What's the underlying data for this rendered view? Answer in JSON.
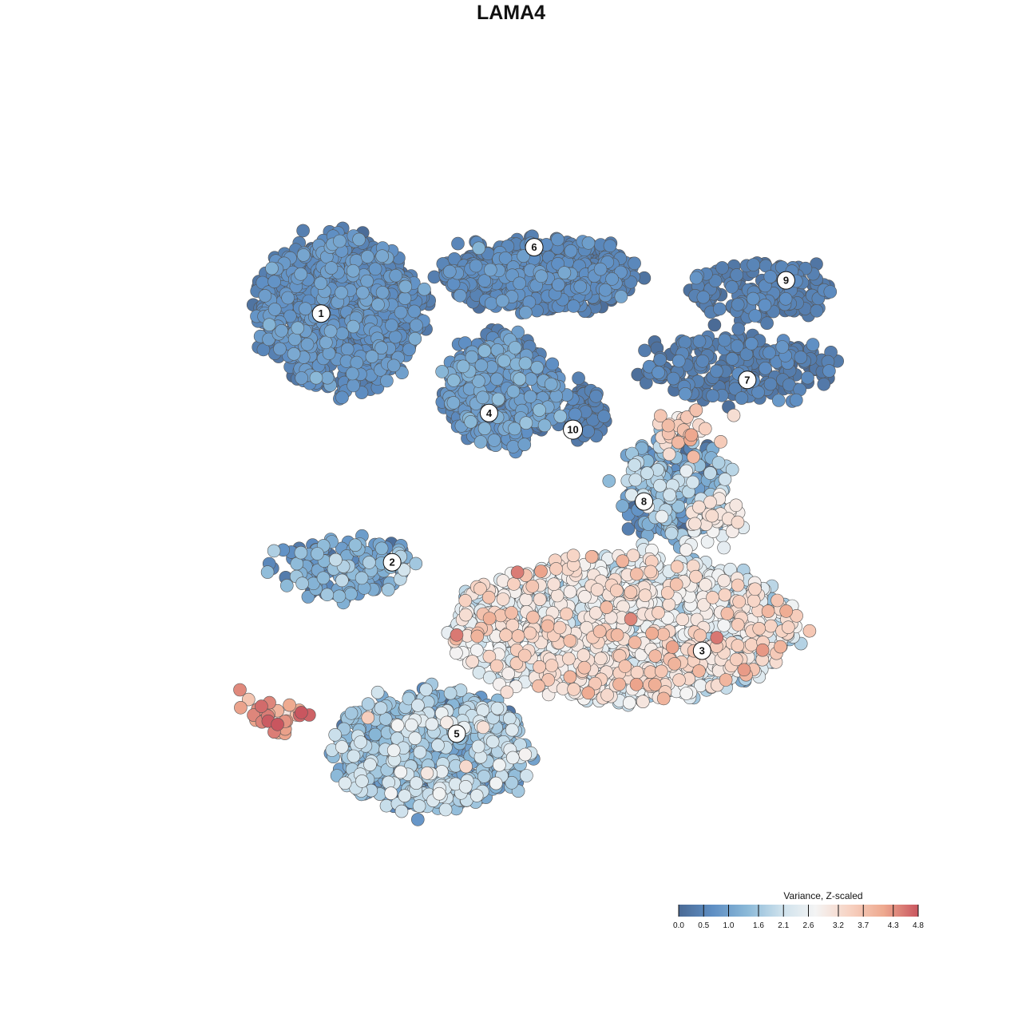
{
  "page": {
    "title": "LAMA4"
  },
  "chart_data": {
    "type": "scatter",
    "title": "LAMA4",
    "xlabel": "",
    "ylabel": "",
    "grid": false,
    "legend_position": "bottom-right",
    "legend": {
      "title": "Variance, Z-scaled",
      "ticks": [
        "0.0",
        "0.5",
        "1.0",
        "1.6",
        "2.1",
        "2.6",
        "3.2",
        "3.7",
        "4.3",
        "4.8"
      ],
      "min": 0.0,
      "max": 4.8,
      "colors": [
        "#4a6a95",
        "#5f8fc4",
        "#8bb9d8",
        "#cde1ec",
        "#f4f4f4",
        "#f7d2c2",
        "#eea98f",
        "#c9565f"
      ]
    },
    "clusters": [
      {
        "label": "1",
        "x": 0.13,
        "y": 0.7,
        "rx": 0.13,
        "ry": 0.14,
        "n": 900,
        "mean": 0.55,
        "sd": 0.25
      },
      {
        "label": "6",
        "x": 0.44,
        "y": 0.77,
        "rx": 0.15,
        "ry": 0.06,
        "n": 520,
        "mean": 0.45,
        "sd": 0.22
      },
      {
        "label": "9",
        "x": 0.78,
        "y": 0.74,
        "rx": 0.11,
        "ry": 0.05,
        "n": 170,
        "mean": 0.35,
        "sd": 0.15
      },
      {
        "label": "7",
        "x": 0.74,
        "y": 0.6,
        "rx": 0.15,
        "ry": 0.06,
        "n": 230,
        "mean": 0.35,
        "sd": 0.18
      },
      {
        "label": "4",
        "x": 0.38,
        "y": 0.56,
        "rx": 0.09,
        "ry": 0.1,
        "n": 420,
        "mean": 0.7,
        "sd": 0.3
      },
      {
        "label": "10",
        "x": 0.51,
        "y": 0.52,
        "rx": 0.03,
        "ry": 0.05,
        "n": 60,
        "mean": 0.35,
        "sd": 0.15
      },
      {
        "label": "8",
        "x": 0.65,
        "y": 0.38,
        "rx": 0.08,
        "ry": 0.1,
        "n": 240,
        "mean": 1.1,
        "sd": 0.7
      },
      {
        "label": "2",
        "x": 0.13,
        "y": 0.24,
        "rx": 0.11,
        "ry": 0.05,
        "n": 170,
        "mean": 0.9,
        "sd": 0.55
      },
      {
        "label": "3",
        "x": 0.57,
        "y": 0.13,
        "rx": 0.27,
        "ry": 0.13,
        "n": 1300,
        "mean": 2.5,
        "sd": 0.65
      },
      {
        "label": "5",
        "x": 0.27,
        "y": -0.09,
        "rx": 0.15,
        "ry": 0.11,
        "n": 700,
        "mean": 1.4,
        "sd": 0.55
      }
    ],
    "label_positions": [
      {
        "label": "1",
        "x": 0.1,
        "y": 0.7
      },
      {
        "label": "6",
        "x": 0.43,
        "y": 0.82
      },
      {
        "label": "9",
        "x": 0.82,
        "y": 0.76
      },
      {
        "label": "7",
        "x": 0.76,
        "y": 0.58
      },
      {
        "label": "4",
        "x": 0.36,
        "y": 0.52
      },
      {
        "label": "10",
        "x": 0.49,
        "y": 0.49
      },
      {
        "label": "8",
        "x": 0.6,
        "y": 0.36
      },
      {
        "label": "2",
        "x": 0.21,
        "y": 0.25
      },
      {
        "label": "3",
        "x": 0.69,
        "y": 0.09
      },
      {
        "label": "5",
        "x": 0.31,
        "y": -0.06
      }
    ],
    "hotspots": [
      {
        "x": 0.03,
        "y": -0.03,
        "n": 30,
        "mean": 4.3,
        "sd": 0.4
      },
      {
        "x": 0.66,
        "y": 0.49,
        "n": 30,
        "mean": 3.5,
        "sd": 0.3
      },
      {
        "x": 0.71,
        "y": 0.33,
        "n": 40,
        "mean": 2.9,
        "sd": 0.3
      }
    ],
    "point_count_approx": 4800
  }
}
